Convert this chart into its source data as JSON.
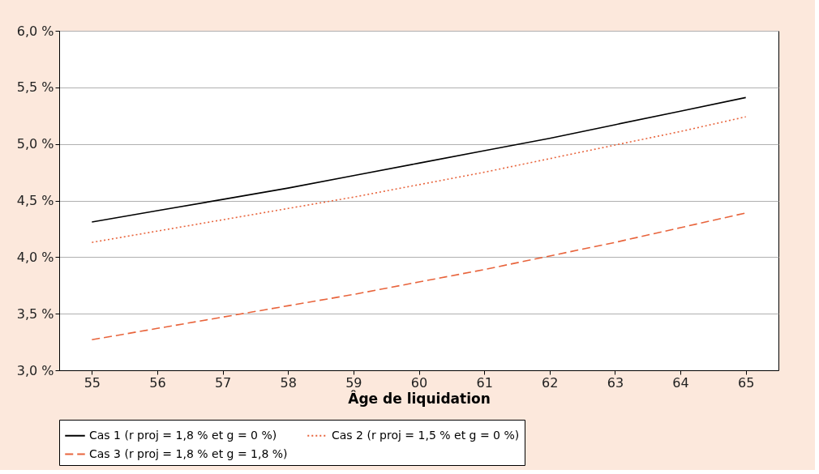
{
  "chart_data": {
    "type": "line",
    "xlabel": "Âge de liquidation",
    "x": [
      55,
      56,
      57,
      58,
      59,
      60,
      61,
      62,
      63,
      64,
      65
    ],
    "xlim": [
      54.5,
      65.5
    ],
    "xticks": [
      55,
      56,
      57,
      58,
      59,
      60,
      61,
      62,
      63,
      64,
      65
    ],
    "ylim": [
      3.0,
      6.0
    ],
    "yticks": [
      {
        "value": 3.0,
        "label": "3,0 %"
      },
      {
        "value": 3.5,
        "label": "3,5 %"
      },
      {
        "value": 4.0,
        "label": "4,0 %"
      },
      {
        "value": 4.5,
        "label": "4,5 %"
      },
      {
        "value": 5.0,
        "label": "5,0 %"
      },
      {
        "value": 5.5,
        "label": "5,5 %"
      },
      {
        "value": 6.0,
        "label": "6,0 %"
      }
    ],
    "grid": "y",
    "legend": "bottom",
    "marker": "none",
    "series": [
      {
        "name": "Cas 1 (r proj = 1,8 % et g = 0 %)",
        "color": "#000000",
        "line_style": "solid",
        "values": [
          4.31,
          4.41,
          4.51,
          4.61,
          4.72,
          4.83,
          4.94,
          5.05,
          5.17,
          5.29,
          5.41
        ]
      },
      {
        "name": "Cas 2 (r proj = 1,5 % et g = 0 %)",
        "color": "#e8643c",
        "line_style": "dotted",
        "values": [
          4.13,
          4.23,
          4.33,
          4.43,
          4.53,
          4.64,
          4.75,
          4.87,
          4.99,
          5.11,
          5.24
        ]
      },
      {
        "name": "Cas 3 (r proj = 1,8 % et g = 1,8 %)",
        "color": "#e8643c",
        "line_style": "dashed",
        "values": [
          3.27,
          3.37,
          3.47,
          3.57,
          3.67,
          3.78,
          3.89,
          4.01,
          4.13,
          4.26,
          4.39
        ]
      }
    ]
  }
}
